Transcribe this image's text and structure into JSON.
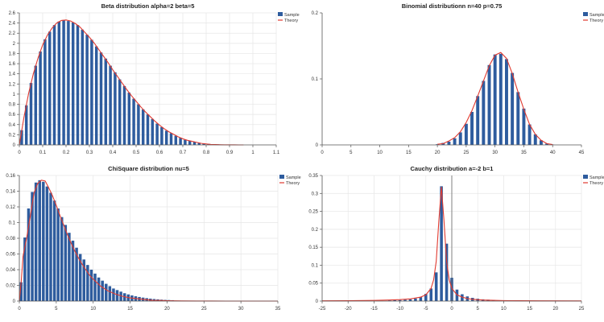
{
  "colors": {
    "sample": "#2e5c9e",
    "theory": "#e03a30",
    "grid": "#e6e6e6",
    "axis": "#555555"
  },
  "chart_data": [
    {
      "type": "bar",
      "title": "Beta distribution alpha=2 beta=5",
      "legend": [
        "Sample",
        "Theory"
      ],
      "legend_position": "top-right",
      "grid": true,
      "xlim": [
        0,
        1.1
      ],
      "ylim": [
        0,
        2.6
      ],
      "xticks": [
        0,
        0.1,
        0.2,
        0.3,
        0.4,
        0.5,
        0.6,
        0.7,
        0.8,
        0.9,
        1,
        1.1
      ],
      "yticks": [
        0,
        0.2,
        0.4,
        0.6,
        0.8,
        1,
        1.2,
        1.4,
        1.6,
        1.8,
        2,
        2.2,
        2.4,
        2.6
      ],
      "bar_width": 0.012,
      "x": [
        0.01,
        0.03,
        0.05,
        0.07,
        0.09,
        0.11,
        0.13,
        0.15,
        0.17,
        0.19,
        0.21,
        0.23,
        0.25,
        0.27,
        0.29,
        0.31,
        0.33,
        0.35,
        0.37,
        0.39,
        0.41,
        0.43,
        0.45,
        0.47,
        0.49,
        0.51,
        0.53,
        0.55,
        0.57,
        0.59,
        0.61,
        0.63,
        0.65,
        0.67,
        0.69,
        0.71,
        0.73,
        0.75,
        0.77,
        0.79,
        0.81,
        0.83,
        0.85,
        0.87,
        0.89,
        0.91,
        0.93,
        0.95
      ],
      "values": [
        0.29,
        0.78,
        1.22,
        1.56,
        1.84,
        2.08,
        2.23,
        2.36,
        2.43,
        2.46,
        2.44,
        2.41,
        2.36,
        2.27,
        2.17,
        2.07,
        1.94,
        1.82,
        1.7,
        1.56,
        1.43,
        1.29,
        1.16,
        1.03,
        0.91,
        0.8,
        0.7,
        0.6,
        0.51,
        0.42,
        0.35,
        0.28,
        0.23,
        0.18,
        0.14,
        0.1,
        0.08,
        0.06,
        0.04,
        0.03,
        0.02,
        0.01,
        0.01,
        0.005,
        0.002,
        0.001,
        0.001,
        0.0005
      ],
      "theory_x": [
        0,
        0.02,
        0.04,
        0.06,
        0.08,
        0.1,
        0.12,
        0.14,
        0.16,
        0.18,
        0.2,
        0.22,
        0.24,
        0.26,
        0.28,
        0.3,
        0.32,
        0.34,
        0.36,
        0.38,
        0.4,
        0.42,
        0.44,
        0.46,
        0.48,
        0.5,
        0.52,
        0.54,
        0.56,
        0.58,
        0.6,
        0.62,
        0.64,
        0.66,
        0.68,
        0.7,
        0.72,
        0.74,
        0.76,
        0.78,
        0.8,
        0.82,
        0.84,
        0.86,
        0.88,
        0.9,
        0.92,
        0.94,
        0.96
      ],
      "theory_y": [
        0,
        0.55,
        1.02,
        1.4,
        1.71,
        1.97,
        2.16,
        2.3,
        2.4,
        2.45,
        2.46,
        2.44,
        2.39,
        2.32,
        2.22,
        2.12,
        2.01,
        1.88,
        1.75,
        1.62,
        1.48,
        1.35,
        1.22,
        1.09,
        0.97,
        0.86,
        0.75,
        0.65,
        0.56,
        0.47,
        0.39,
        0.32,
        0.26,
        0.21,
        0.16,
        0.12,
        0.09,
        0.07,
        0.05,
        0.03,
        0.02,
        0.01,
        0.007,
        0.004,
        0.002,
        0.001,
        0.0005,
        0.0002,
        0
      ]
    },
    {
      "type": "bar",
      "title": "Binomial distributionn n=40 p=0.75",
      "legend": [
        "Sample",
        "Theory"
      ],
      "legend_position": "top-right",
      "grid": false,
      "xlim": [
        0,
        45
      ],
      "ylim": [
        0,
        0.2
      ],
      "xticks": [
        0,
        5,
        10,
        15,
        20,
        25,
        30,
        35,
        40,
        45
      ],
      "yticks": [
        0,
        0.1,
        0.2
      ],
      "bar_width": 0.55,
      "x": [
        20,
        21,
        22,
        23,
        24,
        25,
        26,
        27,
        28,
        29,
        30,
        31,
        32,
        33,
        34,
        35,
        36,
        37,
        38,
        39,
        40
      ],
      "values": [
        0.001,
        0.003,
        0.005,
        0.01,
        0.019,
        0.032,
        0.05,
        0.074,
        0.097,
        0.121,
        0.137,
        0.138,
        0.13,
        0.109,
        0.08,
        0.055,
        0.031,
        0.016,
        0.007,
        0.002,
        0.0005
      ],
      "theory_x": [
        20,
        21,
        22,
        23,
        24,
        25,
        26,
        27,
        28,
        29,
        30,
        31,
        32,
        33,
        34,
        35,
        36,
        37,
        38,
        39,
        40
      ],
      "theory_y": [
        0.001,
        0.002,
        0.006,
        0.011,
        0.02,
        0.034,
        0.052,
        0.074,
        0.097,
        0.12,
        0.136,
        0.14,
        0.131,
        0.108,
        0.08,
        0.054,
        0.031,
        0.016,
        0.007,
        0.002,
        0.0005
      ]
    },
    {
      "type": "bar",
      "title": "ChiSquare distribution nu=5",
      "legend": [
        "Sample",
        "Theory"
      ],
      "legend_position": "top-right",
      "grid": true,
      "xlim": [
        0,
        35
      ],
      "ylim": [
        0,
        0.16
      ],
      "xticks": [
        0,
        5,
        10,
        15,
        20,
        25,
        30,
        35
      ],
      "yticks": [
        0,
        0.02,
        0.04,
        0.06,
        0.08,
        0.1,
        0.12,
        0.14,
        0.16
      ],
      "bar_width": 0.38,
      "x": [
        0.25,
        0.75,
        1.25,
        1.75,
        2.25,
        2.75,
        3.25,
        3.75,
        4.25,
        4.75,
        5.25,
        5.75,
        6.25,
        6.75,
        7.25,
        7.75,
        8.25,
        8.75,
        9.25,
        9.75,
        10.25,
        10.75,
        11.25,
        11.75,
        12.25,
        12.75,
        13.25,
        13.75,
        14.25,
        14.75,
        15.25,
        15.75,
        16.25,
        16.75,
        17.25,
        17.75,
        18.25,
        18.75,
        19.25,
        19.75,
        20.25,
        20.75
      ],
      "values": [
        0.024,
        0.081,
        0.118,
        0.139,
        0.151,
        0.154,
        0.152,
        0.146,
        0.138,
        0.128,
        0.118,
        0.107,
        0.097,
        0.087,
        0.077,
        0.068,
        0.06,
        0.053,
        0.046,
        0.04,
        0.035,
        0.03,
        0.026,
        0.022,
        0.019,
        0.016,
        0.014,
        0.012,
        0.01,
        0.0085,
        0.0072,
        0.0061,
        0.0052,
        0.0044,
        0.0037,
        0.0031,
        0.0026,
        0.0022,
        0.0018,
        0.0015,
        0.0013,
        0.0011
      ],
      "theory_x": [
        0,
        0.25,
        0.5,
        1,
        1.5,
        2,
        2.5,
        3,
        3.5,
        4,
        4.5,
        5,
        5.5,
        6,
        6.5,
        7,
        7.5,
        8,
        8.5,
        9,
        9.5,
        10,
        11,
        12,
        13,
        14,
        15,
        16,
        17,
        18,
        19,
        20,
        22,
        24,
        26,
        28,
        30,
        35
      ],
      "theory_y": [
        0,
        0.024,
        0.057,
        0.081,
        0.109,
        0.138,
        0.15,
        0.154,
        0.153,
        0.144,
        0.134,
        0.122,
        0.109,
        0.097,
        0.085,
        0.074,
        0.064,
        0.055,
        0.047,
        0.04,
        0.033,
        0.028,
        0.019,
        0.013,
        0.009,
        0.006,
        0.004,
        0.003,
        0.002,
        0.001,
        0.0008,
        0.0005,
        0.0002,
        0.0001,
        0.0001,
        0,
        0,
        0
      ]
    },
    {
      "type": "bar",
      "title": "Cauchy distribution a=-2 b=1",
      "legend": [
        "Sample",
        "Theory"
      ],
      "legend_position": "top-right",
      "grid": true,
      "xlim": [
        -25,
        25
      ],
      "ylim": [
        0,
        0.35
      ],
      "xticks": [
        -25,
        -20,
        -15,
        -10,
        -5,
        0,
        5,
        10,
        15,
        20,
        25
      ],
      "yticks": [
        0,
        0.05,
        0.1,
        0.15,
        0.2,
        0.25,
        0.3,
        0.35
      ],
      "bar_width": 0.55,
      "x": [
        -12,
        -11,
        -10,
        -9,
        -8,
        -7,
        -6,
        -5,
        -4,
        -3,
        -2,
        -1,
        0,
        1,
        2,
        3,
        4,
        5,
        6,
        7,
        8
      ],
      "values": [
        0.0018,
        0.0022,
        0.0028,
        0.0037,
        0.005,
        0.0072,
        0.011,
        0.02,
        0.035,
        0.08,
        0.32,
        0.16,
        0.065,
        0.032,
        0.019,
        0.013,
        0.009,
        0.0065,
        0.0048,
        0.0038,
        0.003
      ],
      "theory_x": [
        -25,
        -20,
        -15,
        -12,
        -10,
        -8,
        -6,
        -5,
        -4,
        -3.5,
        -3,
        -2.5,
        -2,
        -1.5,
        -1,
        -0.5,
        0,
        1,
        2,
        3,
        4,
        6,
        8,
        10,
        13,
        17,
        25
      ],
      "theory_y": [
        0.0006,
        0.0009,
        0.0019,
        0.0029,
        0.004,
        0.0061,
        0.0111,
        0.0174,
        0.0354,
        0.0594,
        0.111,
        0.2228,
        0.3183,
        0.2228,
        0.111,
        0.0594,
        0.0354,
        0.0174,
        0.0111,
        0.007,
        0.005,
        0.003,
        0.002,
        0.0014,
        0.0009,
        0.0006,
        0.0004
      ],
      "vline": 0
    }
  ]
}
